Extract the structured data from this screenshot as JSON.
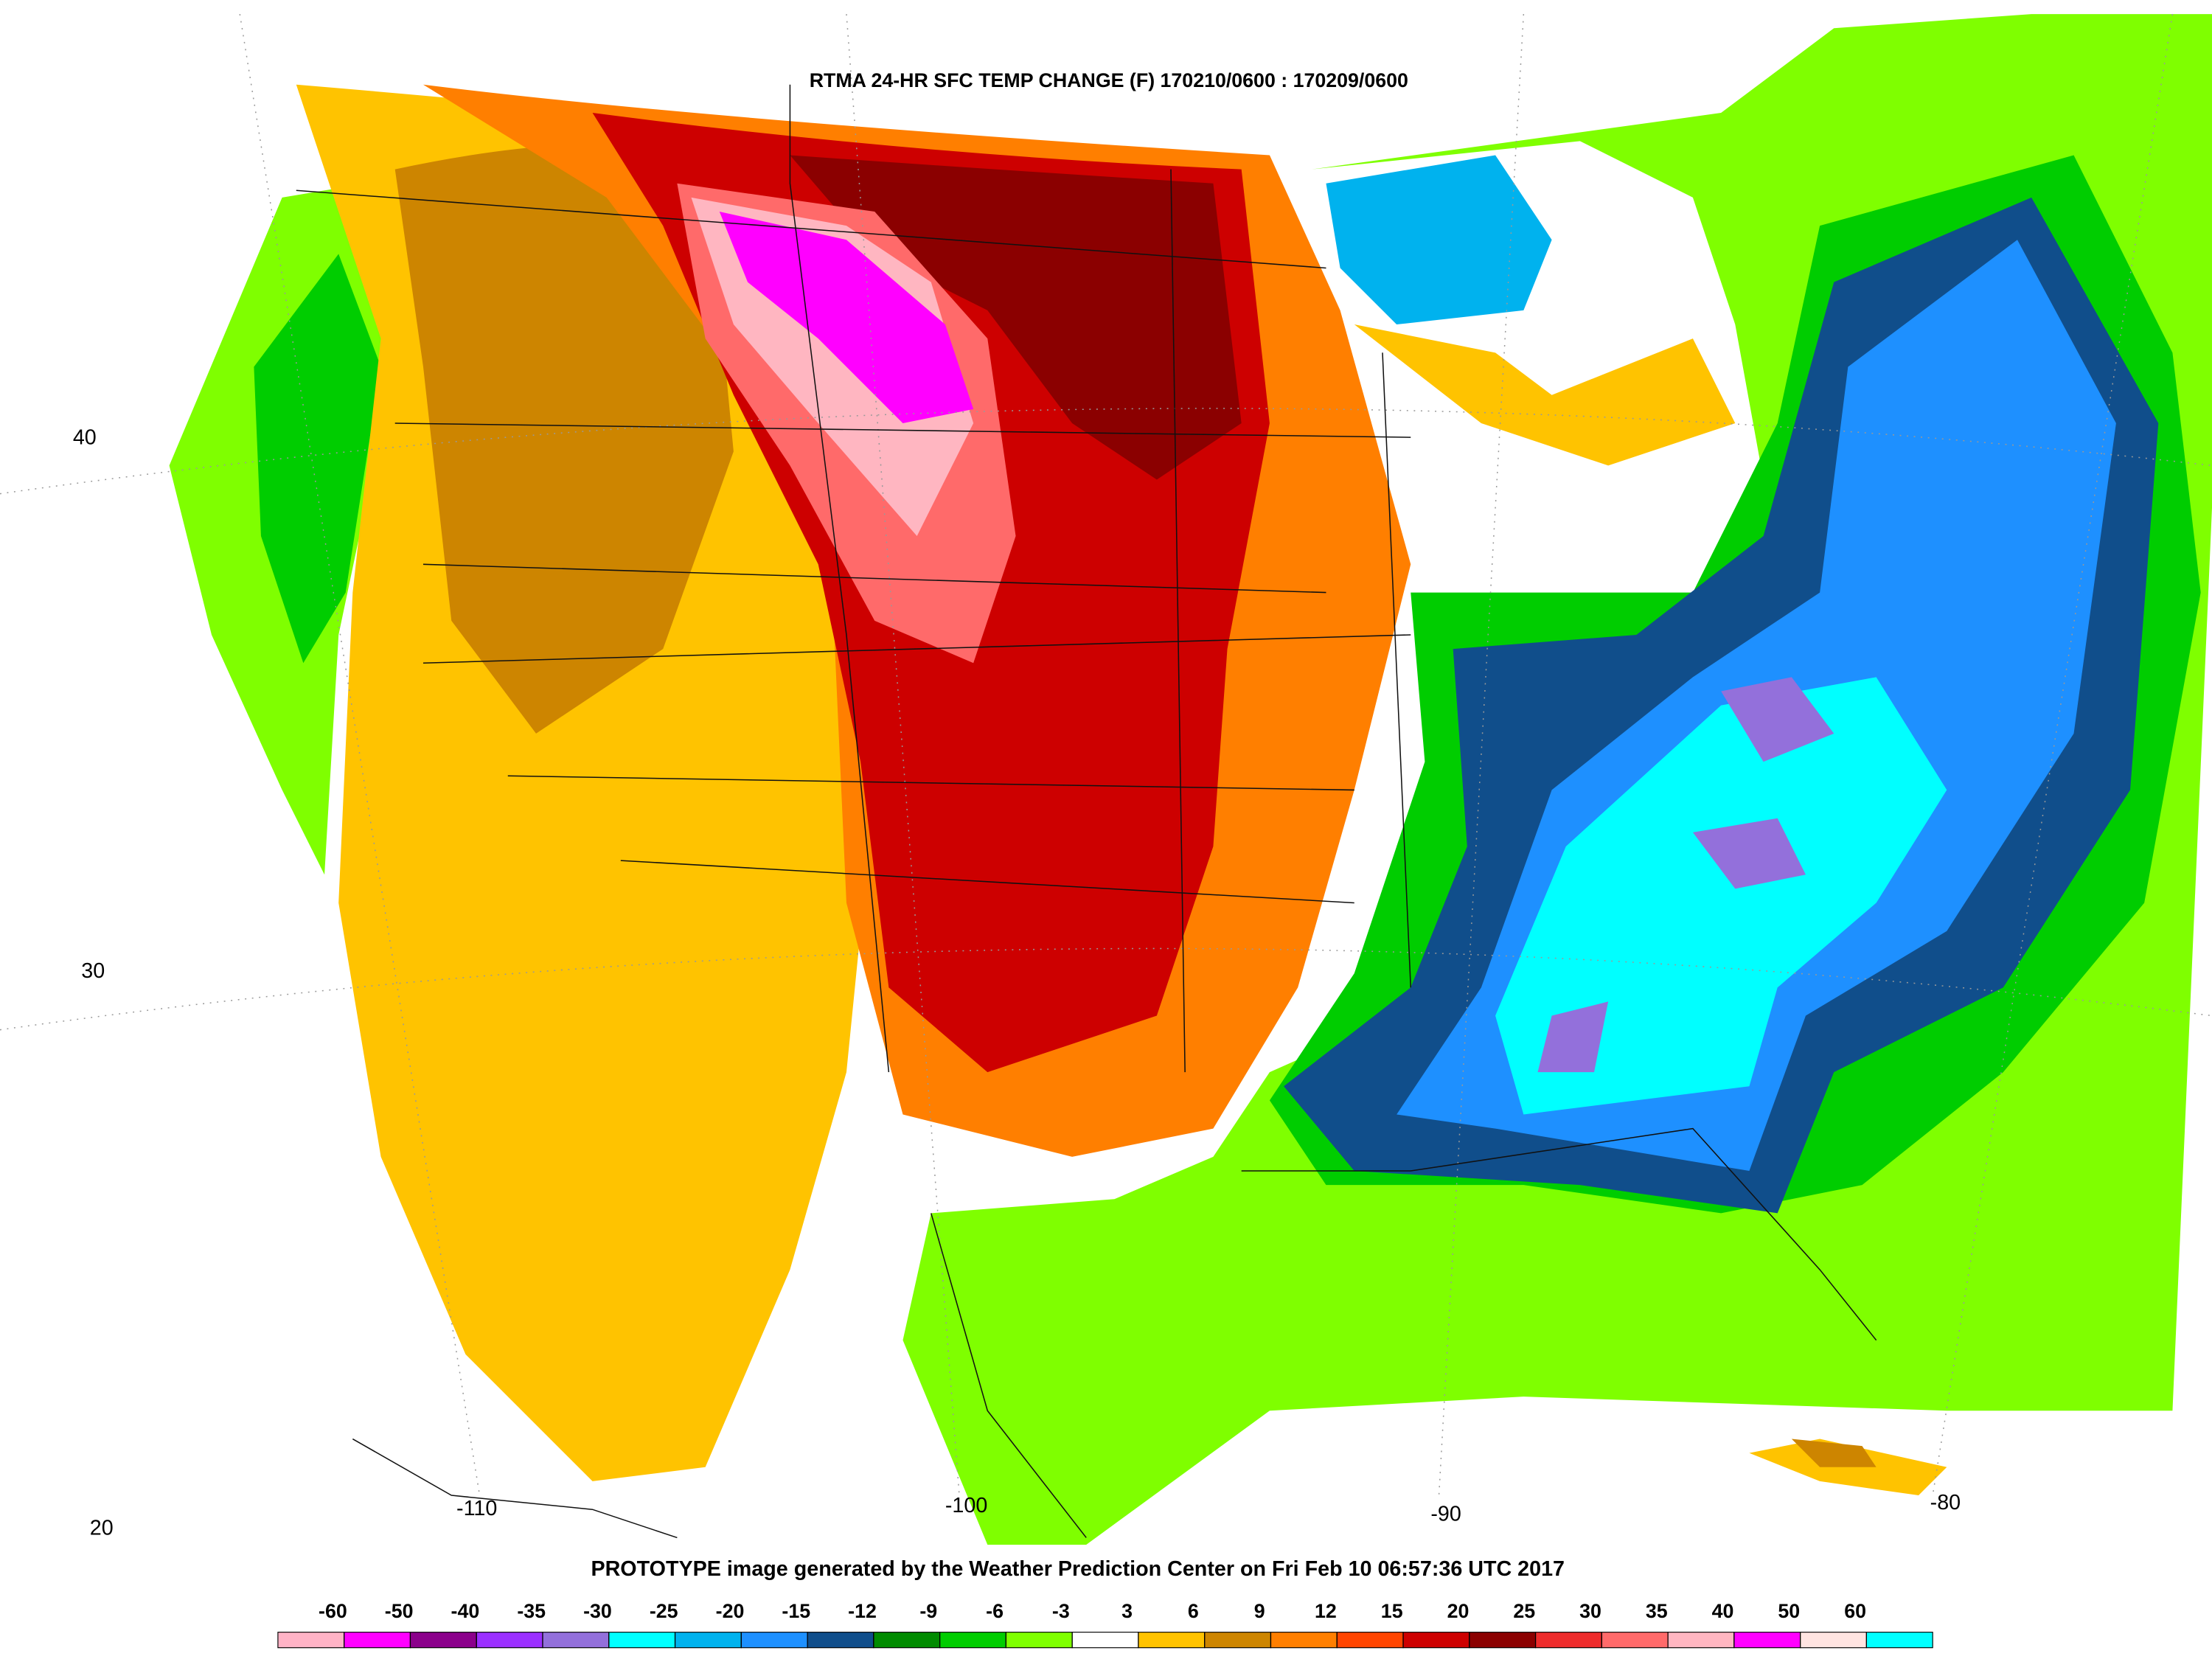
{
  "map": {
    "title": "RTMA 24-HR SFC TEMP CHANGE (F) 170210/0600 : 170209/0600",
    "footer": "PROTOTYPE image generated by the Weather Prediction Center on Fri Feb 10 06:57:36 UTC 2017",
    "lat_labels": [
      40,
      30,
      20
    ],
    "lon_labels": [
      -110,
      -100,
      -90,
      -80
    ],
    "colorbar": {
      "ticks": [
        -60,
        -50,
        -40,
        -35,
        -30,
        -25,
        -20,
        -15,
        -12,
        -9,
        -6,
        -3,
        3,
        6,
        9,
        12,
        15,
        20,
        25,
        30,
        35,
        40,
        50,
        60
      ],
      "colors": [
        "#ffb3c6",
        "#ff00ff",
        "#8b008b",
        "#9b30ff",
        "#9370db",
        "#00ffff",
        "#00b2ee",
        "#1e90ff",
        "#104e8b",
        "#008b00",
        "#00cd00",
        "#7fff00",
        "#ffffff",
        "#ffc300",
        "#cd8500",
        "#ff7f00",
        "#ff4500",
        "#cd0000",
        "#8b0000",
        "#ee2c2c",
        "#ff6a6a",
        "#ffb6c1",
        "#ff00ff",
        "#ffe4e1",
        "#00ffff"
      ]
    }
  }
}
